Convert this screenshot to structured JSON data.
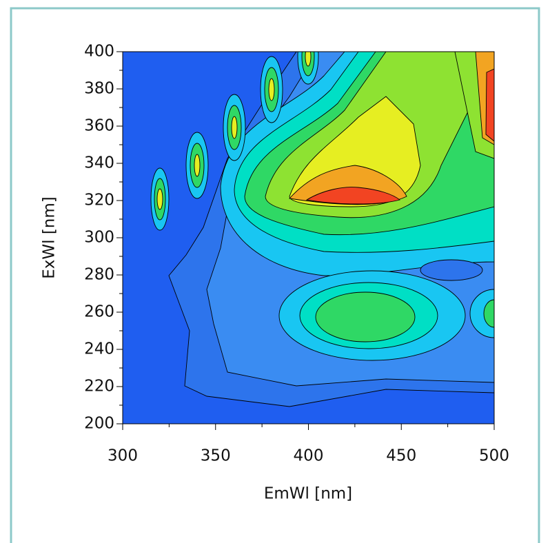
{
  "chart_data": {
    "type": "contour",
    "x_label": "EmWl [nm]",
    "y_label": "ExWl [nm]",
    "xlim": [
      300,
      500
    ],
    "ylim": [
      200,
      400
    ],
    "xticks": [
      300,
      350,
      400,
      450,
      500
    ],
    "yticks": [
      200,
      220,
      240,
      260,
      280,
      300,
      320,
      340,
      360,
      380,
      400
    ]
  }
}
